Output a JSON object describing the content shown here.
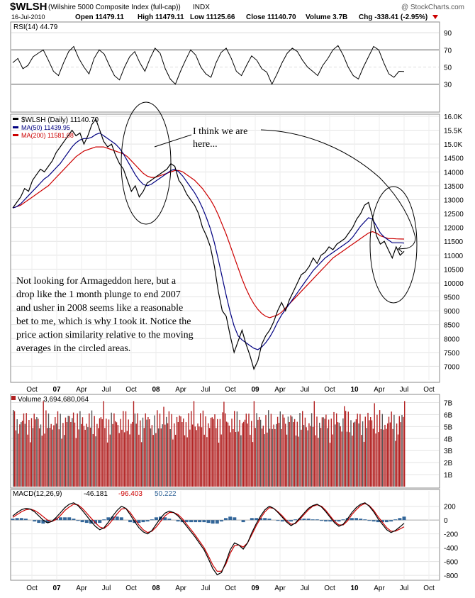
{
  "header": {
    "symbol": "$WLSH",
    "name": "(Wilshire 5000 Composite Index (full-cap))",
    "exchange": "INDX",
    "watermark": "@ StockCharts.com",
    "date": "16-Jul-2010",
    "open": "Open 11479.11",
    "high": "High 11479.11",
    "low": "Low 11125.66",
    "close": "Close 11140.70",
    "volume": "Volume 3.7B",
    "chg": "Chg -338.41 (-2.95%)"
  },
  "chart_data": [
    {
      "type": "line",
      "panel": "rsi",
      "legend": "RSI(14) 44.79",
      "ylim": [
        0,
        100
      ],
      "yticks": [
        90,
        70,
        50,
        30
      ],
      "reference_lines": [
        70,
        30
      ],
      "series": [
        {
          "name": "RSI(14)",
          "color": "#000000",
          "values": [
            55,
            60,
            48,
            52,
            62,
            66,
            70,
            58,
            45,
            40,
            55,
            68,
            74,
            60,
            50,
            42,
            60,
            70,
            65,
            52,
            40,
            35,
            50,
            62,
            68,
            55,
            45,
            60,
            72,
            66,
            48,
            36,
            30,
            45,
            58,
            70,
            64,
            50,
            42,
            38,
            55,
            67,
            72,
            60,
            45,
            40,
            52,
            63,
            58,
            48,
            44,
            30,
            42,
            55,
            66,
            72,
            68,
            58,
            50,
            45,
            40,
            52,
            60,
            70,
            75,
            64,
            50,
            40,
            36,
            50,
            62,
            74,
            70,
            55,
            42,
            38,
            45,
            44.79
          ]
        }
      ]
    },
    {
      "type": "line",
      "panel": "price",
      "legend": [
        "$WLSH (Daily) 11140.70",
        "MA(50) 11439.95",
        "MA(200) 11581.08"
      ],
      "ylim": [
        6500,
        16000
      ],
      "yticks": [
        16000,
        15500,
        15000,
        14500,
        14000,
        13500,
        13000,
        12500,
        12000,
        11500,
        11000,
        10500,
        10000,
        9500,
        9000,
        8500,
        8000,
        7500,
        7000
      ],
      "ytick_labels": [
        "16.0K",
        "15.5K",
        "15.0K",
        "14500",
        "14000",
        "13500",
        "13000",
        "12500",
        "12000",
        "11500",
        "11000",
        "10500",
        "10000",
        "9500",
        "9000",
        "8500",
        "8000",
        "7500",
        "7000"
      ],
      "x_ticks": [
        "Oct",
        "07",
        "Apr",
        "Jul",
        "Oct",
        "08",
        "Apr",
        "Jul",
        "Oct",
        "09",
        "Apr",
        "Jul",
        "Oct",
        "10",
        "Apr",
        "Jul",
        "Oct"
      ],
      "series": [
        {
          "name": "$WLSH (Daily)",
          "color": "#000000",
          "values": [
            12700,
            12900,
            13100,
            13400,
            13300,
            13700,
            13900,
            14100,
            14000,
            14200,
            14400,
            14700,
            14900,
            15100,
            15300,
            15500,
            15300,
            15400,
            15000,
            15300,
            15700,
            15900,
            15500,
            15100,
            14900,
            15000,
            14600,
            14300,
            14100,
            13700,
            13300,
            13500,
            13100,
            13300,
            13600,
            13700,
            13800,
            13900,
            14000,
            14100,
            14300,
            14200,
            13700,
            13500,
            13200,
            13000,
            12800,
            12500,
            12000,
            11700,
            11300,
            10600,
            9700,
            9000,
            8800,
            8100,
            7500,
            7900,
            8300,
            7800,
            7400,
            6900,
            7200,
            7800,
            8100,
            8300,
            8600,
            9000,
            9300,
            9000,
            9400,
            9700,
            10000,
            10300,
            10400,
            10600,
            10900,
            10700,
            11000,
            11100,
            11300,
            11200,
            11400,
            11500,
            11600,
            11800,
            12000,
            12300,
            12500,
            12800,
            12900,
            12400,
            11700,
            11400,
            11500,
            11200,
            10900,
            11300,
            11000,
            11140.7
          ]
        },
        {
          "name": "MA(50)",
          "color": "#000080",
          "values": [
            12700,
            12750,
            12850,
            13000,
            13150,
            13300,
            13450,
            13600,
            13750,
            13850,
            14000,
            14150,
            14300,
            14500,
            14700,
            14900,
            15050,
            15150,
            15200,
            15200,
            15250,
            15350,
            15400,
            15300,
            15200,
            15100,
            15000,
            14850,
            14650,
            14400,
            14150,
            13900,
            13700,
            13550,
            13500,
            13550,
            13650,
            13750,
            13850,
            13950,
            14050,
            14100,
            14000,
            13850,
            13650,
            13450,
            13250,
            13000,
            12700,
            12350,
            11950,
            11450,
            10850,
            10200,
            9550,
            8950,
            8450,
            8100,
            7950,
            7850,
            7750,
            7650,
            7600,
            7700,
            7850,
            8050,
            8300,
            8600,
            8850,
            9050,
            9250,
            9450,
            9650,
            9850,
            10050,
            10250,
            10450,
            10600,
            10750,
            10900,
            11000,
            11100,
            11200,
            11300,
            11400,
            11500,
            11650,
            11850,
            12050,
            12200,
            12350,
            12300,
            12050,
            11800,
            11650,
            11550,
            11450,
            11450,
            11450,
            11439.95
          ]
        },
        {
          "name": "MA(200)",
          "color": "#cc0000",
          "values": [
            12700,
            12750,
            12800,
            12900,
            13000,
            13100,
            13200,
            13300,
            13400,
            13500,
            13650,
            13800,
            13950,
            14100,
            14250,
            14400,
            14550,
            14650,
            14750,
            14800,
            14850,
            14900,
            14900,
            14900,
            14850,
            14800,
            14750,
            14700,
            14650,
            14550,
            14400,
            14250,
            14100,
            13950,
            13850,
            13800,
            13800,
            13850,
            13900,
            13950,
            14000,
            14050,
            14050,
            14000,
            13900,
            13800,
            13700,
            13550,
            13400,
            13200,
            13000,
            12750,
            12450,
            12100,
            11750,
            11350,
            10950,
            10550,
            10150,
            9800,
            9500,
            9250,
            9050,
            8900,
            8800,
            8750,
            8800,
            8850,
            8950,
            9100,
            9250,
            9400,
            9550,
            9700,
            9850,
            10000,
            10150,
            10300,
            10450,
            10600,
            10750,
            10900,
            11000,
            11100,
            11200,
            11300,
            11400,
            11500,
            11600,
            11700,
            11800,
            11850,
            11800,
            11700,
            11650,
            11600,
            11600,
            11590,
            11585,
            11581.08
          ]
        }
      ],
      "annotations": [
        {
          "text": [
            "I think we are",
            "here..."
          ]
        },
        {
          "text": [
            "Not looking for Armageddon here, but a",
            "drop like the 1 month plunge to end 2007",
            "and usher in 2008 seems like a reasonable",
            "bet to me, which is why I took it. Notice the",
            "price action similarity relative to the moving",
            "averages in the circled areas."
          ]
        }
      ]
    },
    {
      "type": "bar",
      "panel": "volume",
      "legend": "Volume 3,694,680,064",
      "ylim": [
        0,
        7500000000
      ],
      "yticks": [
        7000000000,
        6000000000,
        5000000000,
        4000000000,
        3000000000,
        2000000000,
        1000000000
      ],
      "ytick_labels": [
        "7B",
        "6B",
        "5B",
        "4B",
        "3B",
        "2B",
        "1B"
      ],
      "up_color": "#555555",
      "down_color": "#b22222"
    },
    {
      "type": "line",
      "panel": "macd",
      "legend": [
        "MACD(12,26,9)",
        "-46.181",
        "-96.403",
        "50.222"
      ],
      "ylim": [
        -850,
        320
      ],
      "yticks": [
        200,
        0,
        -200,
        -400,
        -600,
        -800
      ],
      "x_ticks": [
        "Oct",
        "07",
        "Apr",
        "Jul",
        "Oct",
        "08",
        "Apr",
        "Jul",
        "Oct",
        "09",
        "Apr",
        "Jul",
        "Oct",
        "10",
        "Apr",
        "Jul",
        "Oct"
      ],
      "series": [
        {
          "name": "MACD",
          "color": "#000000",
          "values": [
            60,
            110,
            150,
            170,
            160,
            120,
            60,
            0,
            -40,
            -20,
            40,
            110,
            180,
            230,
            250,
            210,
            140,
            60,
            -20,
            -90,
            -140,
            -110,
            -30,
            60,
            140,
            200,
            170,
            80,
            -20,
            -110,
            -170,
            -200,
            -150,
            -60,
            30,
            100,
            130,
            110,
            60,
            -10,
            -90,
            -170,
            -250,
            -340,
            -430,
            -560,
            -700,
            -790,
            -760,
            -610,
            -430,
            -330,
            -360,
            -420,
            -330,
            -180,
            -50,
            60,
            150,
            200,
            170,
            110,
            40,
            -30,
            -80,
            -40,
            30,
            100,
            170,
            210,
            230,
            190,
            120,
            40,
            -40,
            -90,
            -60,
            20,
            110,
            180,
            230,
            250,
            200,
            120,
            20,
            -60,
            -140,
            -180,
            -150,
            -100,
            -46.181
          ]
        },
        {
          "name": "Signal",
          "color": "#cc0000",
          "values": [
            40,
            80,
            120,
            150,
            160,
            140,
            100,
            50,
            0,
            -20,
            10,
            70,
            140,
            190,
            230,
            220,
            170,
            100,
            30,
            -40,
            -100,
            -120,
            -70,
            10,
            90,
            160,
            170,
            110,
            20,
            -70,
            -140,
            -180,
            -160,
            -100,
            -20,
            60,
            110,
            110,
            80,
            20,
            -60,
            -140,
            -220,
            -310,
            -400,
            -520,
            -650,
            -740,
            -740,
            -640,
            -480,
            -370,
            -360,
            -390,
            -330,
            -210,
            -80,
            30,
            120,
            180,
            170,
            120,
            60,
            -10,
            -60,
            -50,
            10,
            80,
            150,
            200,
            220,
            200,
            140,
            60,
            -20,
            -70,
            -70,
            -10,
            80,
            150,
            210,
            240,
            210,
            140,
            50,
            -30,
            -110,
            -160,
            -160,
            -130,
            -96.403
          ]
        },
        {
          "name": "Histogram",
          "color": "#336699",
          "values": [
            20,
            30,
            30,
            20,
            0,
            -20,
            -40,
            -50,
            -40,
            0,
            30,
            40,
            40,
            40,
            20,
            -10,
            -30,
            -40,
            -50,
            -50,
            -40,
            10,
            40,
            50,
            50,
            40,
            0,
            -30,
            -40,
            -40,
            -30,
            -20,
            10,
            40,
            50,
            40,
            20,
            0,
            -20,
            -30,
            -30,
            -30,
            -30,
            -30,
            -30,
            -40,
            -50,
            -50,
            -20,
            30,
            50,
            40,
            0,
            -30,
            0,
            30,
            30,
            30,
            30,
            20,
            0,
            -10,
            -20,
            -20,
            -20,
            10,
            20,
            20,
            20,
            10,
            10,
            -10,
            -20,
            -20,
            -20,
            -20,
            10,
            30,
            30,
            30,
            20,
            10,
            -10,
            -20,
            -30,
            -30,
            -30,
            -20,
            10,
            30,
            50.222
          ]
        }
      ]
    }
  ]
}
